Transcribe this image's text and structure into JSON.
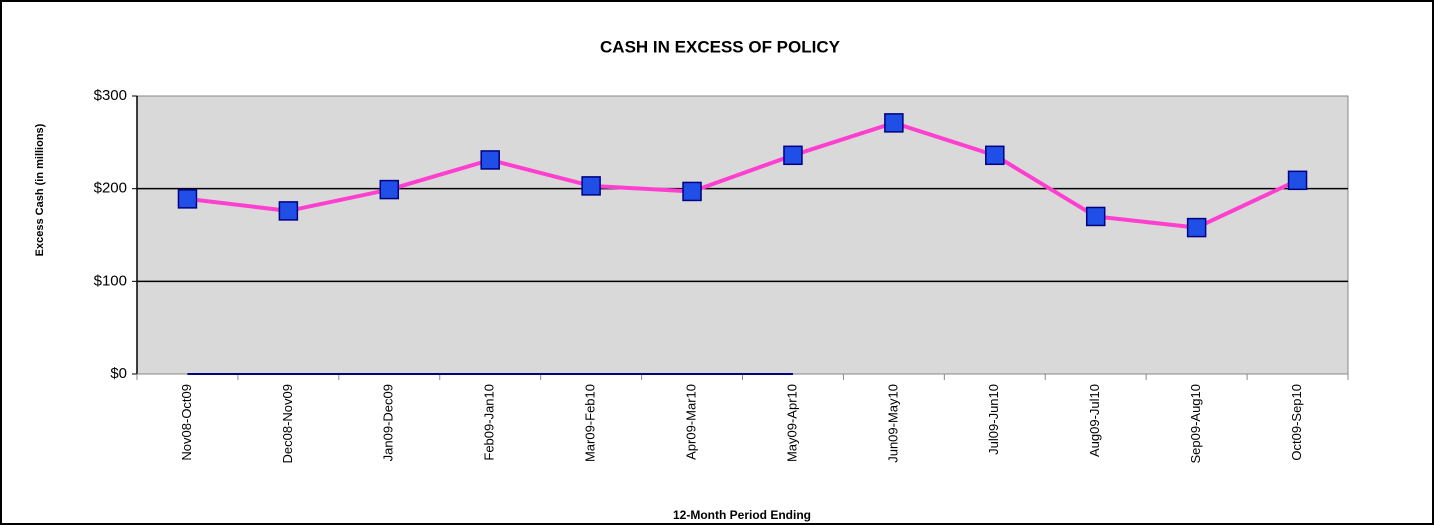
{
  "chart_data": {
    "type": "line",
    "title": "CASH IN EXCESS OF POLICY",
    "y_label": "Excess Cash (in millions)",
    "x_label": "12-Month Period Ending",
    "categories": [
      "Nov08-Oct09",
      "Dec08-Nov09",
      "Jan09-Dec09",
      "Feb09-Jan10",
      "Mar09-Feb10",
      "Apr09-Mar10",
      "May09-Apr10",
      "Jun09-May10",
      "Jul09-Jun10",
      "Aug09-Jul10",
      "Sep09-Aug10",
      "Oct09-Sep10"
    ],
    "series": [
      {
        "color": "#ff3fcf",
        "marker_color": "#1f4fe6",
        "values": [
          189,
          176,
          199,
          231,
          203,
          197,
          236,
          271,
          236,
          170,
          158,
          209
        ]
      },
      {
        "color": "#000080",
        "values": [
          0,
          0,
          0,
          0,
          0,
          0,
          0,
          null,
          null,
          null,
          null,
          null
        ]
      }
    ],
    "ylim": [
      0,
      300
    ],
    "yticks": [
      {
        "value": 0,
        "label": "$0"
      },
      {
        "value": 100,
        "label": "$100"
      },
      {
        "value": 200,
        "label": "$200"
      },
      {
        "value": 300,
        "label": "$300"
      }
    ],
    "grid": true,
    "plot_background": "#d9d9d9"
  }
}
